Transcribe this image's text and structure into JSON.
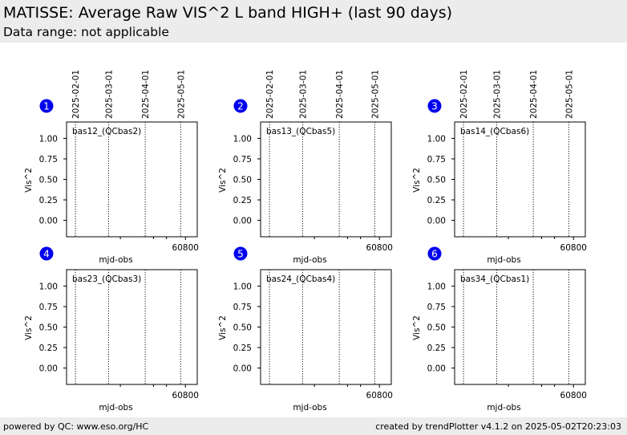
{
  "header": {
    "title": "MATISSE: Average Raw VIS^2 L band HIGH+ (last 90 days)",
    "subtitle": "Data range: not applicable"
  },
  "footer": {
    "left": "powered by QC: www.eso.org/HC",
    "right": "created by trendPlotter v4.1.2 on 2025-05-02T20:23:03"
  },
  "colors": {
    "badge": "#0000ee",
    "header_bg": "#ececec"
  },
  "chart_data": [
    {
      "type": "scatter",
      "panel": "1",
      "label": "bas12_(QCbas2)",
      "xlabel": "mjd-obs",
      "ylabel": "Vis^2",
      "xlim": [
        60699.5,
        60810
      ],
      "ylim": [
        -0.2,
        1.2
      ],
      "yticks": [
        0.0,
        0.25,
        0.5,
        0.75,
        1.0
      ],
      "ytick_labels": [
        "0.00",
        "0.25",
        "0.50",
        "0.75",
        "1.00"
      ],
      "xticks": [
        60800
      ],
      "xtick_labels": [
        "60800"
      ],
      "date_markers": [
        {
          "mjd": 60707,
          "label": "2025-02-01"
        },
        {
          "mjd": 60735,
          "label": "2025-03-01"
        },
        {
          "mjd": 60766,
          "label": "2025-04-01"
        },
        {
          "mjd": 60796,
          "label": "2025-05-01"
        }
      ],
      "series": []
    },
    {
      "type": "scatter",
      "panel": "2",
      "label": "bas13_(QCbas5)",
      "xlabel": "mjd-obs",
      "ylabel": "Vis^2",
      "xlim": [
        60699.5,
        60810
      ],
      "ylim": [
        -0.2,
        1.2
      ],
      "yticks": [
        0.0,
        0.25,
        0.5,
        0.75,
        1.0
      ],
      "ytick_labels": [
        "0.00",
        "0.25",
        "0.50",
        "0.75",
        "1.00"
      ],
      "xticks": [
        60800
      ],
      "xtick_labels": [
        "60800"
      ],
      "date_markers": [
        {
          "mjd": 60707,
          "label": "2025-02-01"
        },
        {
          "mjd": 60735,
          "label": "2025-03-01"
        },
        {
          "mjd": 60766,
          "label": "2025-04-01"
        },
        {
          "mjd": 60796,
          "label": "2025-05-01"
        }
      ],
      "series": []
    },
    {
      "type": "scatter",
      "panel": "3",
      "label": "bas14_(QCbas6)",
      "xlabel": "mjd-obs",
      "ylabel": "Vis^2",
      "xlim": [
        60699.5,
        60810
      ],
      "ylim": [
        -0.2,
        1.2
      ],
      "yticks": [
        0.0,
        0.25,
        0.5,
        0.75,
        1.0
      ],
      "ytick_labels": [
        "0.00",
        "0.25",
        "0.50",
        "0.75",
        "1.00"
      ],
      "xticks": [
        60800
      ],
      "xtick_labels": [
        "60800"
      ],
      "date_markers": [
        {
          "mjd": 60707,
          "label": "2025-02-01"
        },
        {
          "mjd": 60735,
          "label": "2025-03-01"
        },
        {
          "mjd": 60766,
          "label": "2025-04-01"
        },
        {
          "mjd": 60796,
          "label": "2025-05-01"
        }
      ],
      "series": []
    },
    {
      "type": "scatter",
      "panel": "4",
      "label": "bas23_(QCbas3)",
      "xlabel": "mjd-obs",
      "ylabel": "Vis^2",
      "xlim": [
        60699.5,
        60810
      ],
      "ylim": [
        -0.2,
        1.2
      ],
      "yticks": [
        0.0,
        0.25,
        0.5,
        0.75,
        1.0
      ],
      "ytick_labels": [
        "0.00",
        "0.25",
        "0.50",
        "0.75",
        "1.00"
      ],
      "xticks": [
        60800
      ],
      "xtick_labels": [
        "60800"
      ],
      "date_markers": [
        {
          "mjd": 60707
        },
        {
          "mjd": 60735
        },
        {
          "mjd": 60766
        },
        {
          "mjd": 60796
        }
      ],
      "series": []
    },
    {
      "type": "scatter",
      "panel": "5",
      "label": "bas24_(QCbas4)",
      "xlabel": "mjd-obs",
      "ylabel": "Vis^2",
      "xlim": [
        60699.5,
        60810
      ],
      "ylim": [
        -0.2,
        1.2
      ],
      "yticks": [
        0.0,
        0.25,
        0.5,
        0.75,
        1.0
      ],
      "ytick_labels": [
        "0.00",
        "0.25",
        "0.50",
        "0.75",
        "1.00"
      ],
      "xticks": [
        60800
      ],
      "xtick_labels": [
        "60800"
      ],
      "date_markers": [
        {
          "mjd": 60707
        },
        {
          "mjd": 60735
        },
        {
          "mjd": 60766
        },
        {
          "mjd": 60796
        }
      ],
      "series": []
    },
    {
      "type": "scatter",
      "panel": "6",
      "label": "bas34_(QCbas1)",
      "xlabel": "mjd-obs",
      "ylabel": "Vis^2",
      "xlim": [
        60699.5,
        60810
      ],
      "ylim": [
        -0.2,
        1.2
      ],
      "yticks": [
        0.0,
        0.25,
        0.5,
        0.75,
        1.0
      ],
      "ytick_labels": [
        "0.00",
        "0.25",
        "0.50",
        "0.75",
        "1.00"
      ],
      "xticks": [
        60800
      ],
      "xtick_labels": [
        "60800"
      ],
      "date_markers": [
        {
          "mjd": 60707
        },
        {
          "mjd": 60735
        },
        {
          "mjd": 60766
        },
        {
          "mjd": 60796
        }
      ],
      "series": []
    }
  ]
}
